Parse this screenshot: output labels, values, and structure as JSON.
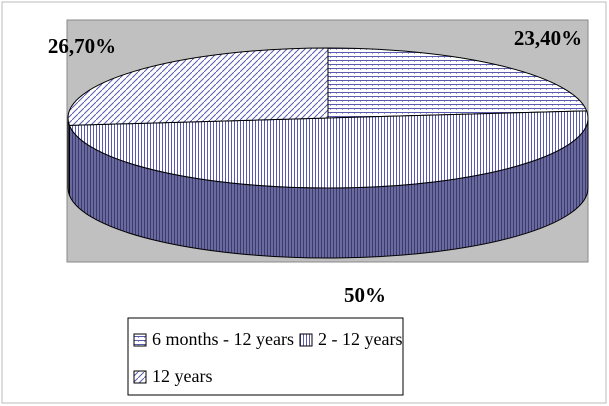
{
  "chart_data": {
    "type": "pie3d",
    "categories": [
      "6 months - 12 years",
      "2 - 12 years",
      "12 years"
    ],
    "values": [
      23.4,
      50,
      26.7
    ],
    "value_labels": [
      "23,40%",
      "50%",
      "26,70%"
    ],
    "colors": [
      "#4a4a9c",
      "#5050a8",
      "#4a4a9c"
    ],
    "legend": "bottom"
  }
}
